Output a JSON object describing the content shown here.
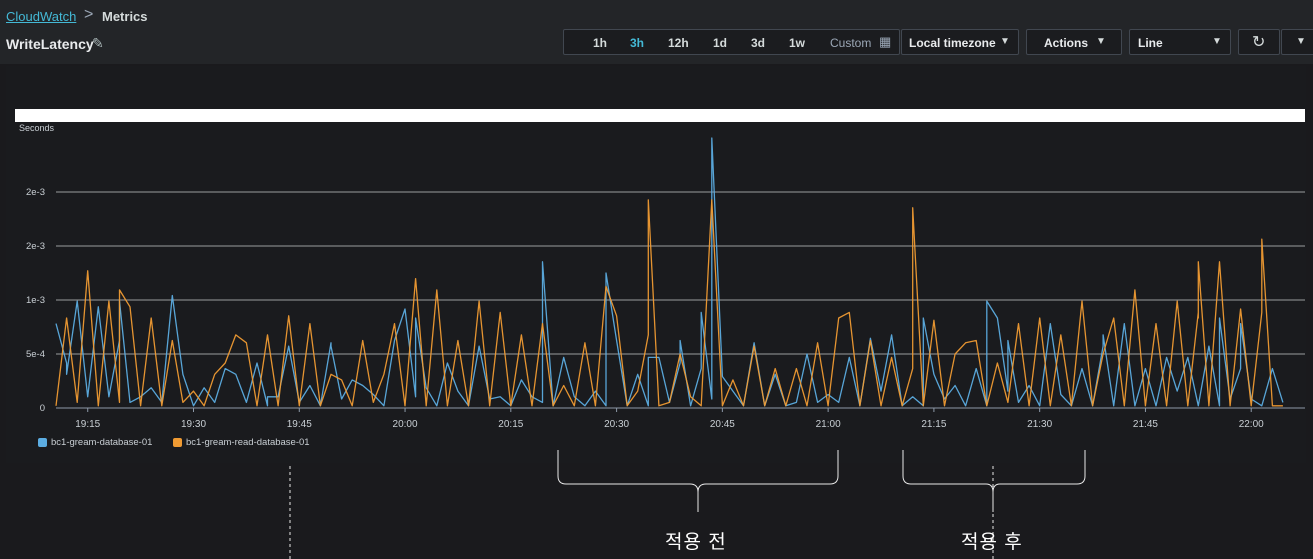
{
  "breadcrumb": {
    "home": "CloudWatch",
    "separator": ">",
    "current": "Metrics"
  },
  "header": {
    "title": "WriteLatency"
  },
  "toolbar": {
    "ranges": [
      "1h",
      "3h",
      "12h",
      "1d",
      "3d",
      "1w"
    ],
    "active_range": "3h",
    "custom_label": "Custom",
    "timezone": "Local timezone",
    "actions": "Actions",
    "chart_type": "Line"
  },
  "annotations": {
    "before": "적용 전",
    "after": "적용 후"
  },
  "colors": {
    "blue": "#5cade2",
    "orange": "#f09b33",
    "background": "#1a1a1d"
  },
  "chart_data": {
    "type": "line",
    "ylabel": "Seconds",
    "y_tick_values": [
      0,
      0.0005,
      0.001,
      0.0015,
      0.002
    ],
    "y_tick_labels": [
      "0",
      "5e-4",
      "1e-3",
      "2e-3",
      "2e-3"
    ],
    "ylim": [
      0,
      0.0024
    ],
    "x_tick_labels": [
      "19:15",
      "19:30",
      "19:45",
      "20:00",
      "20:15",
      "20:30",
      "20:45",
      "21:00",
      "21:15",
      "21:30",
      "21:45",
      "22:00"
    ],
    "x_tick_minutes": [
      0,
      15,
      30,
      45,
      60,
      75,
      90,
      105,
      120,
      135,
      150,
      165
    ],
    "xlim": [
      -4.5,
      170.5
    ],
    "grid": true,
    "legend_position": "bottom-left",
    "series": [
      {
        "name": "bc1-gream-database-01",
        "color": "#5cade2",
        "x": [
          -4.5,
          -3,
          -1.5,
          0,
          1.5,
          3,
          4.5,
          6,
          7.5,
          9,
          10.5,
          12,
          13.5,
          15,
          16.5,
          18,
          19.5,
          21,
          22.5,
          24,
          25.5,
          27,
          28.5,
          30,
          31.5,
          33,
          34.5,
          36,
          37.5,
          39,
          40.5,
          42,
          43.5,
          45,
          46.5,
          48,
          49.5,
          51,
          52.5,
          54,
          55.5,
          57,
          58.5,
          60,
          61.5,
          63,
          64.5,
          66,
          67.5,
          69,
          70.5,
          72,
          73.5,
          75,
          76.5,
          78,
          79.5,
          81,
          82.5,
          84,
          85.5,
          87,
          88.5,
          90,
          91.5,
          93,
          94.5,
          96,
          97.5,
          99,
          100.5,
          102,
          103.5,
          105,
          106.5,
          108,
          109.5,
          111,
          112.5,
          114,
          115.5,
          117,
          118.5,
          120,
          121.5,
          123,
          124.5,
          126,
          127.5,
          129,
          130.5,
          132,
          133.5,
          135,
          136.5,
          138,
          139.5,
          141,
          142.5,
          144,
          145.5,
          147,
          148.5,
          150,
          151.5,
          153,
          154.5,
          156,
          157.5,
          159,
          160.5,
          162,
          163.5,
          165,
          166.5,
          168,
          169.5
        ],
        "y": [
          0.00075,
          0.0004,
          0.00095,
          0.0001,
          0.0009,
          0.0001,
          0.0006,
          5e-05,
          0.0001,
          0.00018,
          5e-05,
          0.001,
          0.0003,
          2e-05,
          0.00018,
          5e-05,
          0.00035,
          0.0003,
          5e-05,
          0.0004,
          2e-05,
          0.0001,
          0.00055,
          5e-05,
          0.0002,
          2e-05,
          0.00058,
          8e-05,
          0.00025,
          0.0002,
          0.00012,
          2e-05,
          0.0006,
          0.00088,
          0.0001,
          0.00018,
          2e-05,
          0.0004,
          0.00015,
          2e-05,
          0.00055,
          8e-05,
          0.0001,
          2e-05,
          0.00025,
          0.0001,
          5e-05,
          2e-05,
          0.00045,
          0.0001,
          2e-05,
          0.00015,
          2e-05,
          0.0006,
          2e-05,
          0.0003,
          2e-05,
          0.00045,
          5e-05,
          0.0004,
          2e-05,
          0.00035,
          8e-05,
          0.00028,
          0.00015,
          2e-05,
          0.00058,
          2e-05,
          0.0003,
          2e-05,
          5e-05,
          0.00048,
          5e-05,
          0.00012,
          5e-05,
          0.00045,
          2e-05,
          0.00062,
          0.00015,
          0.00065,
          2e-05,
          0.0001,
          2e-05,
          0.0003,
          8e-05,
          0.0002,
          2e-05,
          0.00035,
          2e-05,
          0.0008,
          0.00015,
          5e-05,
          0.0002,
          2e-05,
          0.00075,
          0.00012,
          2e-05,
          0.00035,
          2e-05,
          0.00055,
          2e-05,
          0.00075,
          2e-05,
          0.00035,
          2e-05,
          0.00045,
          0.00015,
          0.00045,
          2e-05,
          0.00055,
          2e-05,
          8e-05,
          0.00035,
          8e-05,
          2e-05,
          0.00035,
          5e-05
        ],
        "x_spikes": [
          -3,
          4.5,
          25.5,
          34.5,
          46.5,
          64.5,
          73.5,
          79.5,
          84,
          87,
          88.5,
          118.5,
          127.5,
          130.5,
          144,
          156,
          160.5,
          163.5
        ],
        "y_spikes": [
          0.0003,
          0.00095,
          0.0001,
          0.00055,
          0.0008,
          0.0013,
          0.0012,
          0.00045,
          0.0006,
          0.00085,
          0.0024,
          0.0008,
          0.00095,
          0.0006,
          0.00065,
          0.00045,
          0.0008,
          0.00075
        ]
      },
      {
        "name": "bc1-gream-read-database-01",
        "color": "#f09b33",
        "x": [
          -4.5,
          -3,
          -1.5,
          0,
          1.5,
          3,
          4.5,
          6,
          7.5,
          9,
          10.5,
          12,
          13.5,
          15,
          16.5,
          18,
          19.5,
          21,
          22.5,
          24,
          25.5,
          27,
          28.5,
          30,
          31.5,
          33,
          34.5,
          36,
          37.5,
          39,
          40.5,
          42,
          43.5,
          45,
          46.5,
          48,
          49.5,
          51,
          52.5,
          54,
          55.5,
          57,
          58.5,
          60,
          61.5,
          63,
          64.5,
          66,
          67.5,
          69,
          70.5,
          72,
          73.5,
          75,
          76.5,
          78,
          79.5,
          81,
          82.5,
          84,
          85.5,
          87,
          88.5,
          90,
          91.5,
          93,
          94.5,
          96,
          97.5,
          99,
          100.5,
          102,
          103.5,
          105,
          106.5,
          108,
          109.5,
          111,
          112.5,
          114,
          115.5,
          117,
          118.5,
          120,
          121.5,
          123,
          124.5,
          126,
          127.5,
          129,
          130.5,
          132,
          133.5,
          135,
          136.5,
          138,
          139.5,
          141,
          142.5,
          144,
          145.5,
          147,
          148.5,
          150,
          151.5,
          153,
          154.5,
          156,
          157.5,
          159,
          160.5,
          162,
          163.5,
          165,
          166.5,
          168,
          169.5
        ],
        "y": [
          2e-05,
          0.0008,
          5e-05,
          0.00122,
          2e-05,
          0.00095,
          5e-05,
          0.0009,
          2e-05,
          0.0008,
          2e-05,
          0.0006,
          5e-05,
          0.00015,
          2e-05,
          0.0003,
          0.0004,
          0.00065,
          0.00058,
          2e-05,
          0.00065,
          2e-05,
          0.00082,
          2e-05,
          0.00075,
          2e-05,
          0.0003,
          0.00025,
          2e-05,
          0.0006,
          5e-05,
          0.0003,
          0.00075,
          2e-05,
          0.00115,
          2e-05,
          0.00105,
          2e-05,
          0.0006,
          2e-05,
          0.00095,
          2e-05,
          0.00085,
          2e-05,
          0.00065,
          2e-05,
          0.00075,
          2e-05,
          0.0002,
          2e-05,
          0.00058,
          2e-05,
          0.00108,
          0.00082,
          2e-05,
          0.00015,
          0.00065,
          2e-05,
          5e-05,
          0.00048,
          0.0001,
          2e-05,
          0.00185,
          2e-05,
          0.00025,
          2e-05,
          0.00055,
          2e-05,
          0.00035,
          2e-05,
          0.00035,
          2e-05,
          0.00058,
          2e-05,
          0.0008,
          0.00085,
          2e-05,
          0.0006,
          2e-05,
          0.00045,
          2e-05,
          0.00035,
          2e-05,
          0.00078,
          2e-05,
          0.00048,
          0.00058,
          0.0006,
          2e-05,
          0.0004,
          5e-05,
          0.00075,
          2e-05,
          0.0008,
          2e-05,
          0.00065,
          2e-05,
          0.00095,
          2e-05,
          0.00048,
          0.0008,
          2e-05,
          0.00105,
          2e-05,
          0.00075,
          2e-05,
          0.00095,
          2e-05,
          0.00085,
          2e-05,
          0.0013,
          2e-05,
          0.00088,
          2e-05,
          0.00085,
          2e-05,
          2e-05
        ],
        "x_spikes": [
          4.5,
          79.5,
          117,
          157.5,
          157.5,
          166.5
        ],
        "y_spikes": [
          0.00105,
          0.00185,
          0.00178,
          0.0008,
          0.0013,
          0.0015
        ]
      }
    ]
  }
}
